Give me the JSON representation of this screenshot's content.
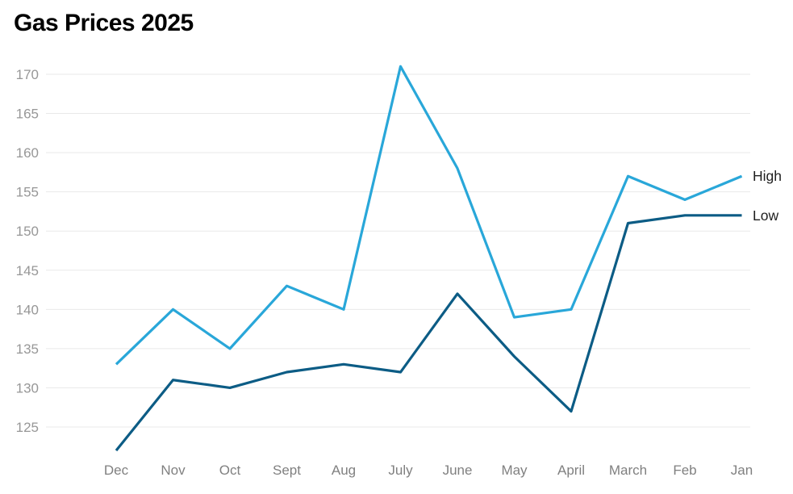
{
  "title": "Gas Prices 2025",
  "chart_data": {
    "type": "line",
    "title": "Gas Prices 2025",
    "categories": [
      "Dec",
      "Nov",
      "Oct",
      "Sept",
      "Aug",
      "July",
      "June",
      "May",
      "April",
      "March",
      "Feb",
      "Jan"
    ],
    "series": [
      {
        "name": "High",
        "color": "#29a7d9",
        "values": [
          133,
          140,
          135,
          143,
          140,
          171,
          158,
          139,
          140,
          157,
          154,
          157
        ]
      },
      {
        "name": "Low",
        "color": "#0c5c85",
        "values": [
          122,
          131,
          130,
          132,
          133,
          132,
          142,
          134,
          127,
          151,
          152,
          152
        ]
      }
    ],
    "yticks": [
      125,
      130,
      135,
      140,
      145,
      150,
      155,
      160,
      165,
      170
    ],
    "ylim": [
      121,
      172
    ],
    "xlabel": "",
    "ylabel": "",
    "grid": true,
    "legend_position": "right-end-of-line"
  },
  "styles": {
    "title_color": "#000000",
    "gridline_color": "#e9e9e9",
    "ytick_color": "#979797",
    "xtick_color": "#808080",
    "legend_text_color": "#1f1f1f",
    "background": "#ffffff"
  }
}
